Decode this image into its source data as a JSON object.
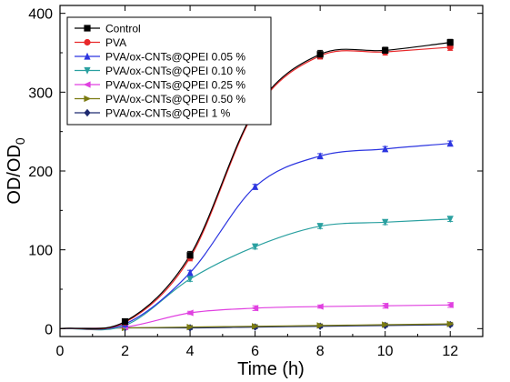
{
  "chart_data": {
    "type": "line",
    "xlabel": "Time (h)",
    "ylabel_main": "OD/OD",
    "ylabel_sub": "0",
    "xlim": [
      0,
      13
    ],
    "ylim": [
      -10,
      410
    ],
    "x_ticks": [
      0,
      2,
      4,
      6,
      8,
      10,
      12
    ],
    "y_ticks": [
      0,
      100,
      200,
      300,
      400
    ],
    "grid": false,
    "legend_position": "top-left",
    "x": [
      0,
      2,
      4,
      6,
      8,
      10,
      12
    ],
    "series": [
      {
        "name": "Control",
        "color": "#000000",
        "marker": "square",
        "values": [
          0,
          9,
          93,
          278,
          348,
          353,
          363
        ],
        "errors": [
          1,
          3,
          5,
          5,
          5,
          4,
          4
        ]
      },
      {
        "name": "PVA",
        "color": "#e8282a",
        "marker": "circle",
        "values": [
          0,
          8,
          90,
          276,
          346,
          351,
          357
        ],
        "errors": [
          1,
          3,
          4,
          5,
          4,
          4,
          4
        ]
      },
      {
        "name": "PVA/ox-CNTs@QPEI 0.05 %",
        "color": "#2c35e0",
        "marker": "triangle-up",
        "values": [
          0,
          6,
          71,
          180,
          219,
          228,
          235
        ],
        "errors": [
          1,
          2,
          3,
          3,
          3,
          3,
          3
        ]
      },
      {
        "name": "PVA/ox-CNTs@QPEI 0.10 %",
        "color": "#2aa0a0",
        "marker": "triangle-down",
        "values": [
          0,
          4,
          63,
          104,
          130,
          135,
          139
        ],
        "errors": [
          1,
          2,
          3,
          3,
          3,
          3,
          3
        ]
      },
      {
        "name": "PVA/ox-CNTs@QPEI 0.25 %",
        "color": "#e040e0",
        "marker": "triangle-left",
        "values": [
          0,
          2,
          20,
          26,
          28,
          29,
          30
        ],
        "errors": [
          1,
          1,
          2,
          3,
          2,
          3,
          3
        ]
      },
      {
        "name": "PVA/ox-CNTs@QPEI 0.50 %",
        "color": "#7a7a10",
        "marker": "triangle-right",
        "values": [
          0,
          1,
          2,
          3,
          4,
          5,
          6
        ],
        "errors": [
          1,
          1,
          2,
          2,
          2,
          2,
          2
        ]
      },
      {
        "name": "PVA/ox-CNTs@QPEI 1 %",
        "color": "#1e2a70",
        "marker": "diamond",
        "values": [
          0,
          1,
          1,
          2,
          3,
          4,
          5
        ],
        "errors": [
          1,
          1,
          2,
          2,
          2,
          2,
          2
        ]
      }
    ]
  }
}
